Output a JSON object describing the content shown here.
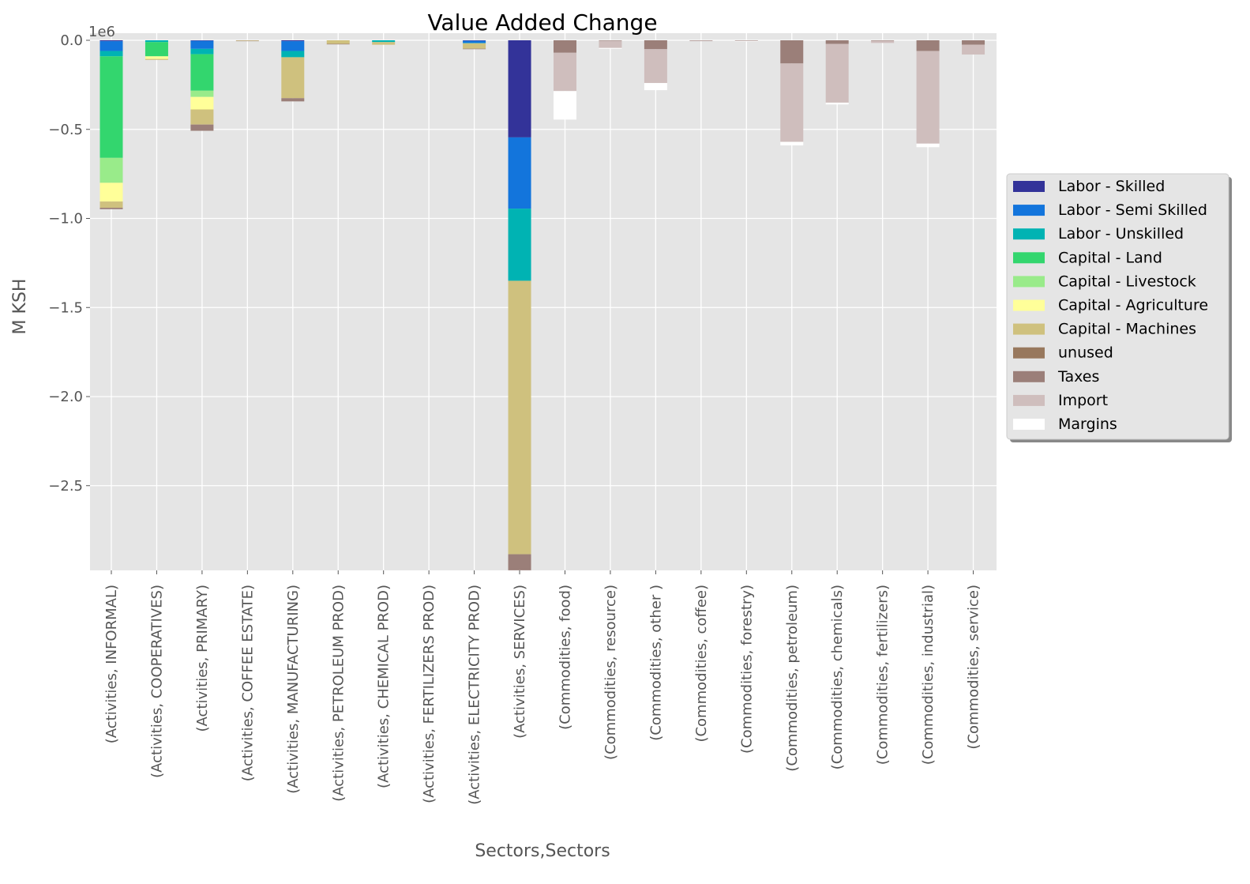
{
  "chart_data": {
    "type": "bar",
    "stacked": true,
    "title": "Value Added Change",
    "xlabel": "Sectors,Sectors",
    "ylabel": "M KSH",
    "y_scale_label": "1e6",
    "y_scale_factor": 1000000,
    "ylim": [
      -2.98,
      0
    ],
    "yticks": [
      0.0,
      -0.5,
      -1.0,
      -1.5,
      -2.0,
      -2.5
    ],
    "ytick_labels": [
      "0.0",
      "−0.5",
      "−1.0",
      "−1.5",
      "−2.0",
      "−2.5"
    ],
    "grid": true,
    "legend_position": "right",
    "categories": [
      "(Activities, INFORMAL)",
      "(Activities, COOPERATIVES)",
      "(Activities, PRIMARY)",
      "(Activities, COFFEE ESTATE)",
      "(Activities, MANUFACTURING)",
      "(Activities, PETROLEUM PROD)",
      "(Activities, CHEMICAL PROD)",
      "(Activities, FERTILIZERS PROD)",
      "(Activities, ELECTRICITY PROD)",
      "(Activities, SERVICES)",
      "(Commodities, food)",
      "(Commodities, resource)",
      "(Commodities, other  )",
      "(Commodities, coffee)",
      "(Commodities, forestry)",
      "(Commodities, petroleum)",
      "(Commodities, chemicals)",
      "(Commodities, fertilizers)",
      "(Commodities, industrial)",
      "(Commodities, service)"
    ],
    "series": [
      {
        "name": "Labor - Skilled",
        "color": "#333399",
        "values": [
          -0.005,
          0,
          -0.003,
          0,
          -0.005,
          0,
          0,
          0,
          -0.003,
          -0.545,
          0,
          0,
          0,
          0,
          0,
          0,
          0,
          0,
          0,
          0
        ]
      },
      {
        "name": "Labor - Semi Skilled",
        "color": "#1375dc",
        "values": [
          -0.055,
          0,
          -0.045,
          0,
          -0.055,
          0,
          0,
          0,
          -0.012,
          -0.4,
          0,
          0,
          0,
          0,
          0,
          0,
          0,
          0,
          0,
          0
        ]
      },
      {
        "name": "Labor - Unskilled",
        "color": "#00b3b3",
        "values": [
          -0.03,
          -0.01,
          -0.03,
          0,
          -0.035,
          0,
          -0.01,
          0,
          -0.002,
          -0.405,
          0,
          0,
          0,
          0,
          0,
          0,
          0,
          0,
          0,
          0
        ]
      },
      {
        "name": "Capital - Land",
        "color": "#33d66e",
        "values": [
          -0.57,
          -0.08,
          -0.205,
          0,
          0,
          0,
          0,
          0,
          0,
          0,
          0,
          0,
          0,
          0,
          0,
          0,
          0,
          0,
          0,
          0
        ]
      },
      {
        "name": "Capital - Livestock",
        "color": "#99eb8a",
        "values": [
          -0.14,
          0,
          -0.035,
          0,
          0,
          0,
          0,
          0,
          0,
          0,
          0,
          0,
          0,
          0,
          0,
          0,
          0,
          0,
          0,
          0
        ]
      },
      {
        "name": "Capital - Agriculture",
        "color": "#ffff99",
        "values": [
          -0.105,
          -0.015,
          -0.07,
          0,
          0,
          0,
          0,
          0,
          0,
          0,
          0,
          0,
          0,
          0,
          0,
          0,
          0,
          0,
          0,
          0
        ]
      },
      {
        "name": "Capital - Machines",
        "color": "#cfc17e",
        "values": [
          -0.035,
          -0.005,
          -0.085,
          -0.003,
          -0.23,
          -0.02,
          -0.015,
          0,
          -0.03,
          -1.535,
          0,
          0,
          0,
          0,
          0,
          0,
          0,
          0,
          0,
          0
        ]
      },
      {
        "name": "unused",
        "color": "#98785d",
        "values": [
          0,
          0,
          0,
          0,
          0,
          0,
          0,
          0,
          0,
          0,
          0,
          0,
          0,
          0,
          0,
          0,
          0,
          0,
          0,
          0
        ]
      },
      {
        "name": "Taxes",
        "color": "#9b7f79",
        "values": [
          -0.008,
          0,
          -0.035,
          -0.002,
          -0.018,
          -0.003,
          0,
          0,
          -0.003,
          -0.09,
          -0.07,
          -0.003,
          -0.05,
          -0.002,
          -0.002,
          -0.13,
          -0.02,
          -0.003,
          -0.06,
          -0.025
        ]
      },
      {
        "name": "Import",
        "color": "#cfbebd",
        "values": [
          0,
          0,
          0,
          0,
          0,
          0,
          0,
          0,
          0,
          0,
          -0.215,
          -0.04,
          -0.19,
          -0.003,
          -0.002,
          -0.44,
          -0.33,
          -0.012,
          -0.52,
          -0.055
        ]
      },
      {
        "name": "Margins",
        "color": "#ffffff",
        "values": [
          0,
          0,
          0,
          0,
          0,
          0,
          0,
          0,
          0,
          0,
          -0.16,
          -0.005,
          -0.04,
          0,
          -0.003,
          -0.02,
          -0.01,
          0,
          -0.02,
          0
        ]
      }
    ]
  }
}
